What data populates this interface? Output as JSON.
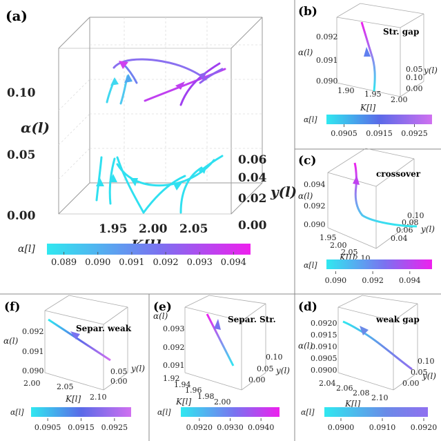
{
  "gradient": {
    "start_color": "#30e8f0",
    "mid_color": "#7a72f0",
    "end_color": "#ee20ee",
    "mid_color_b": "#5a6ae8",
    "end_color_b": "#d070f0",
    "mid_color_d": "#6a8ae8",
    "end_color_d": "#9070f0"
  },
  "chart_data": [
    {
      "panel": "(a)",
      "type": "line",
      "note": "3D RG flow trajectories with arrows",
      "xlabel": "K[l]",
      "ylabel": "α(l)",
      "zlabel": "y(l)",
      "x_ticks": [
        "1.95",
        "2.00",
        "2.05"
      ],
      "alpha_ticks": [
        "0.00",
        "0.05",
        "0.10"
      ],
      "y_ticks": [
        "0.00",
        "0.02",
        "0.04",
        "0.06"
      ],
      "legend_title": "α[l]",
      "colorbar_ticks": [
        "0.089",
        "0.090",
        "0.091",
        "0.092",
        "0.093",
        "0.094"
      ],
      "colorbar_range": [
        0.0885,
        0.0945
      ]
    },
    {
      "panel": "(b)",
      "type": "line",
      "annotation": "Str. gap",
      "xlabel": "K[l]",
      "ylabel": "α(l)",
      "zlabel": "y(l)",
      "x_ticks": [
        "1.90",
        "1.95",
        "2.00"
      ],
      "alpha_ticks": [
        "0.090",
        "0.091",
        "0.092"
      ],
      "y_ticks": [
        "0.00",
        "0.05",
        "0.10"
      ],
      "legend_title": "α[l]",
      "colorbar_ticks": [
        "0.0905",
        "0.0915",
        "0.0925"
      ],
      "colorbar_range": [
        0.09,
        0.093
      ]
    },
    {
      "panel": "(c)",
      "type": "line",
      "annotation": "crossover",
      "xlabel": "K[l]",
      "ylabel": "α(l)",
      "zlabel": "y(l)",
      "x_ticks": [
        "1.95",
        "2.00",
        "2.05",
        "2.10"
      ],
      "alpha_ticks": [
        "0.090",
        "0.092",
        "0.094"
      ],
      "y_ticks": [
        "0.04",
        "0.06",
        "0.08",
        "0.10"
      ],
      "legend_title": "α[l]",
      "colorbar_ticks": [
        "0.090",
        "0.092",
        "0.094"
      ],
      "colorbar_range": [
        0.0895,
        0.0952
      ]
    },
    {
      "panel": "(f)",
      "type": "line",
      "annotation": "Separ. weak",
      "xlabel": "K[l]",
      "ylabel": "α(l)",
      "zlabel": "y(l)",
      "x_ticks": [
        "2.00",
        "2.05",
        "2.10"
      ],
      "alpha_ticks": [
        "0.090",
        "0.091",
        "0.092"
      ],
      "y_ticks": [
        "0.00",
        "0.05"
      ],
      "legend_title": "α[l]",
      "colorbar_ticks": [
        "0.0905",
        "0.0915",
        "0.0925"
      ],
      "colorbar_range": [
        0.09,
        0.093
      ]
    },
    {
      "panel": "(e)",
      "type": "line",
      "annotation": "Separ. Str.",
      "xlabel": "K[l]",
      "ylabel": "α(l)",
      "zlabel": "y(l)",
      "x_ticks": [
        "1.92",
        "1.94",
        "1.96",
        "1.98",
        "2.00"
      ],
      "alpha_ticks": [
        "0.091",
        "0.092",
        "0.093"
      ],
      "y_ticks": [
        "0.00",
        "0.05",
        "0.10"
      ],
      "legend_title": "α[l]",
      "colorbar_ticks": [
        "0.0920",
        "0.0930",
        "0.0940"
      ],
      "colorbar_range": [
        0.0914,
        0.0946
      ]
    },
    {
      "panel": "(d)",
      "type": "line",
      "annotation": "weak gap",
      "xlabel": "K[l]",
      "ylabel": "α(l)",
      "zlabel": "y(l)",
      "x_ticks": [
        "2.04",
        "2.06",
        "2.08",
        "2.10"
      ],
      "alpha_ticks": [
        "0.0900",
        "0.0905",
        "0.0910",
        "0.0915",
        "0.0920"
      ],
      "y_ticks": [
        "0.00",
        "0.05",
        "0.10"
      ],
      "legend_title": "α[l]",
      "colorbar_ticks": [
        "0.0900",
        "0.0910",
        "0.0920"
      ],
      "colorbar_range": [
        0.0896,
        0.0921
      ]
    }
  ]
}
